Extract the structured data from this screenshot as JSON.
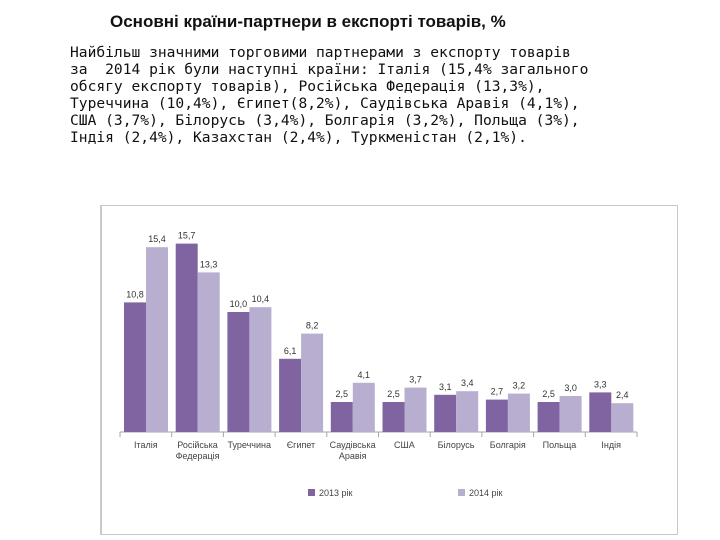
{
  "title": "Основні країни-партнери в експорті товарів, %",
  "paragraph_lines": [
    "Найбільш значними торговими партнерами з експорту товарів",
    "за  2014 рік були наступні країни: Італія (15,4% загального",
    "обсягу експорту товарів), Російська Федерація (13,3%),",
    "Туреччина (10,4%), Єгипет(8,2%), Саудівська Аравія (4,1%),",
    "США (3,7%), Білорусь (3,4%), Болгарія (3,2%), Польща (3%),",
    "Індія (2,4%), Казахстан (2,4%), Туркменістан (2,1%)."
  ],
  "chart_data": {
    "type": "bar",
    "title": "",
    "xlabel": "",
    "ylabel": "",
    "ylim": [
      0,
      17
    ],
    "grid": false,
    "legend_position": "bottom",
    "categories": [
      [
        "Італія"
      ],
      [
        "Російська",
        "Федерація"
      ],
      [
        "Туреччина"
      ],
      [
        "Єгипет"
      ],
      [
        "Саудівська",
        "Аравія"
      ],
      [
        "США"
      ],
      [
        "Білорусь"
      ],
      [
        "Болгарія"
      ],
      [
        "Польща"
      ],
      [
        "Індія"
      ]
    ],
    "series": [
      {
        "name": "2013 рік",
        "color": "#8064a2",
        "values": [
          10.8,
          15.7,
          10.0,
          6.1,
          2.5,
          2.5,
          3.1,
          2.7,
          2.5,
          3.3
        ],
        "labels": [
          "10,8",
          "15,7",
          "10,0",
          "6,1",
          "2,5",
          "2,5",
          "3,1",
          "2,7",
          "2,5",
          "3,3"
        ]
      },
      {
        "name": "2014 рік",
        "color": "#b8aed0",
        "values": [
          15.4,
          13.3,
          10.4,
          8.2,
          4.1,
          3.7,
          3.4,
          3.2,
          3.0,
          2.4
        ],
        "labels": [
          "15,4",
          "13,3",
          "10,4",
          "8,2",
          "4,1",
          "3,7",
          "3,4",
          "3,2",
          "3,0",
          "2,4"
        ]
      }
    ]
  }
}
